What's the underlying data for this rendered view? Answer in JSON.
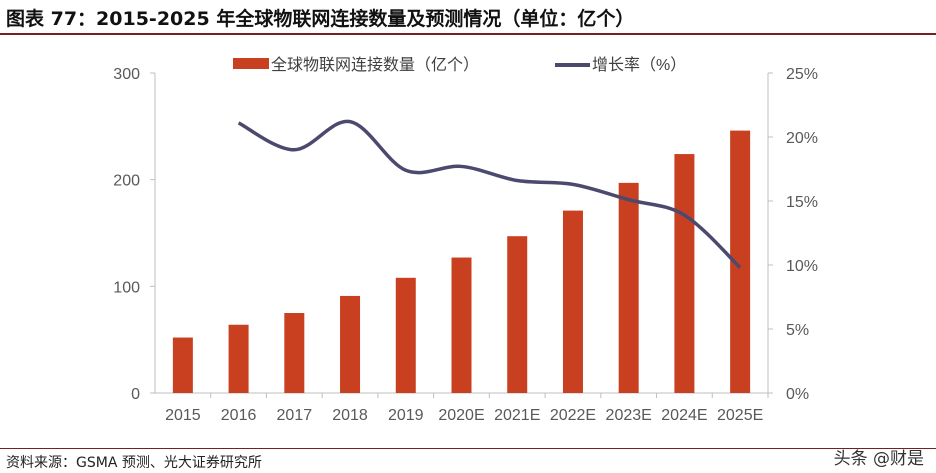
{
  "title": "图表 77：2015-2025 年全球物联网连接数量及预测情况（单位：亿个）",
  "source": "资料来源：GSMA 预测、光大证券研究所",
  "watermark": "头条 @财是",
  "chart_data": {
    "type": "bar+line",
    "title": "",
    "categories": [
      "2015",
      "2016",
      "2017",
      "2018",
      "2019",
      "2020E",
      "2021E",
      "2022E",
      "2023E",
      "2024E",
      "2025E"
    ],
    "series": [
      {
        "name": "全球物联网连接数量（亿个）",
        "type": "bar",
        "axis": "left",
        "color": "#c8401f",
        "values": [
          52,
          64,
          75,
          91,
          108,
          127,
          147,
          171,
          197,
          224,
          246
        ]
      },
      {
        "name": "增长率（%）",
        "type": "line",
        "axis": "right",
        "color": "#4b4a6e",
        "values": [
          null,
          21.1,
          19.0,
          21.2,
          17.4,
          17.7,
          16.6,
          16.3,
          15.1,
          13.9,
          9.8
        ]
      }
    ],
    "left_axis": {
      "ylim": [
        0,
        300
      ],
      "ticks": [
        "0",
        "100",
        "200",
        "300"
      ]
    },
    "right_axis": {
      "ylim": [
        0,
        25
      ],
      "ticks": [
        "0%",
        "5%",
        "10%",
        "15%",
        "20%",
        "25%"
      ]
    },
    "grid": false,
    "legend": "top"
  }
}
